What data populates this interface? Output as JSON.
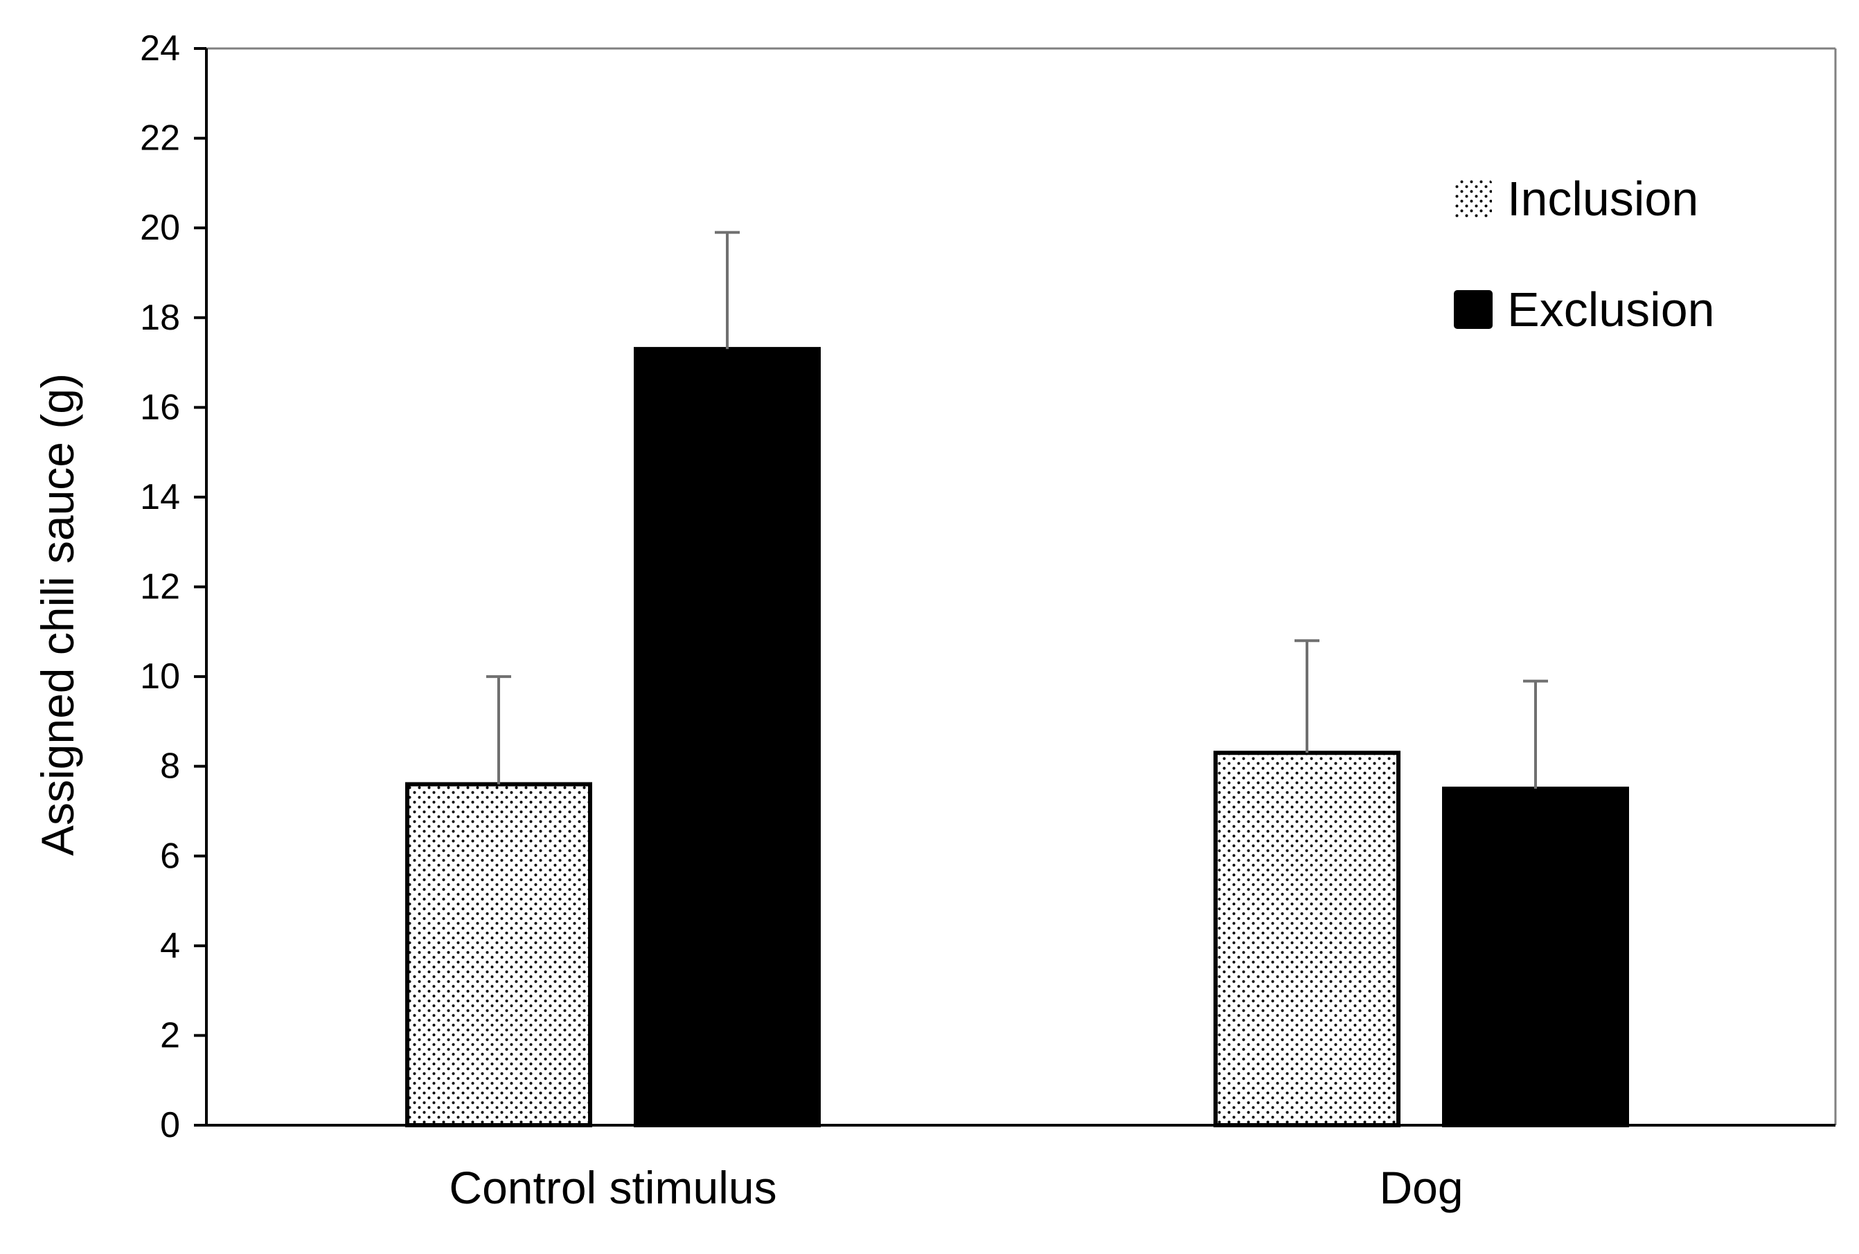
{
  "chart_data": {
    "type": "bar",
    "title": "",
    "xlabel": "",
    "ylabel": "Assigned chili sauce (g)",
    "categories": [
      "Control stimulus",
      "Dog"
    ],
    "series": [
      {
        "name": "Inclusion",
        "pattern": "dotted",
        "fill_color": "#ffffff",
        "dot_color": "#000000",
        "values": [
          7.6,
          8.3
        ],
        "error_upper": [
          10.0,
          10.8
        ]
      },
      {
        "name": "Exclusion",
        "pattern": "solid",
        "fill_color": "#000000",
        "values": [
          17.3,
          7.5
        ],
        "error_upper": [
          19.9,
          9.9
        ]
      }
    ],
    "ylim": [
      0,
      24
    ],
    "yticks": [
      "0",
      "2",
      "4",
      "6",
      "8",
      "10",
      "12",
      "14",
      "16",
      "18",
      "20",
      "22",
      "24"
    ],
    "grid": false,
    "legend_position": "top-right",
    "colors": {
      "axis": "#000000",
      "frame": "#808080",
      "error_bar": "#707070"
    }
  }
}
